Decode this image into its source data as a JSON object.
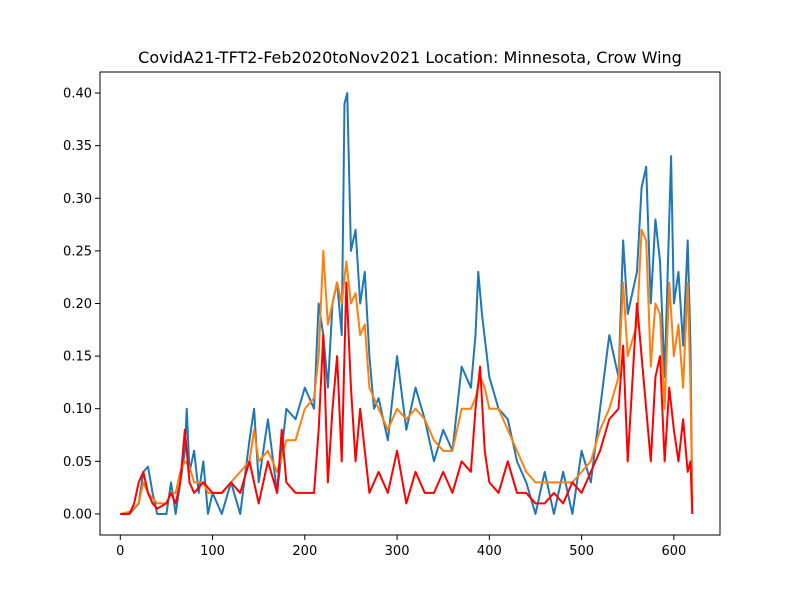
{
  "chart_data": {
    "type": "line",
    "title": "CovidA21-TFT2-Feb2020toNov2021 Location: Minnesota, Crow Wing",
    "xlabel": "",
    "ylabel": "",
    "xlim": [
      -22,
      650
    ],
    "ylim": [
      -0.02,
      0.42
    ],
    "x_ticks": [
      0,
      100,
      200,
      300,
      400,
      500,
      600
    ],
    "y_ticks": [
      0.0,
      0.05,
      0.1,
      0.15,
      0.2,
      0.25,
      0.3,
      0.35,
      0.4
    ],
    "y_tick_labels": [
      "0.00",
      "0.05",
      "0.10",
      "0.15",
      "0.20",
      "0.25",
      "0.30",
      "0.35",
      "0.40"
    ],
    "grid": false,
    "legend": "none",
    "series": [
      {
        "color": "#1f77b4",
        "points": [
          [
            0,
            0.0
          ],
          [
            10,
            0.0
          ],
          [
            20,
            0.01
          ],
          [
            25,
            0.04
          ],
          [
            30,
            0.045
          ],
          [
            35,
            0.02
          ],
          [
            40,
            0.0
          ],
          [
            50,
            0.0
          ],
          [
            55,
            0.03
          ],
          [
            60,
            0.0
          ],
          [
            65,
            0.03
          ],
          [
            70,
            0.06
          ],
          [
            72,
            0.1
          ],
          [
            75,
            0.04
          ],
          [
            80,
            0.06
          ],
          [
            85,
            0.02
          ],
          [
            90,
            0.05
          ],
          [
            95,
            0.0
          ],
          [
            100,
            0.02
          ],
          [
            110,
            0.0
          ],
          [
            120,
            0.03
          ],
          [
            130,
            0.0
          ],
          [
            140,
            0.07
          ],
          [
            145,
            0.1
          ],
          [
            150,
            0.03
          ],
          [
            160,
            0.09
          ],
          [
            170,
            0.02
          ],
          [
            180,
            0.1
          ],
          [
            190,
            0.09
          ],
          [
            200,
            0.12
          ],
          [
            210,
            0.1
          ],
          [
            215,
            0.2
          ],
          [
            220,
            0.17
          ],
          [
            225,
            0.12
          ],
          [
            230,
            0.2
          ],
          [
            235,
            0.22
          ],
          [
            240,
            0.17
          ],
          [
            243,
            0.39
          ],
          [
            246,
            0.4
          ],
          [
            250,
            0.25
          ],
          [
            255,
            0.27
          ],
          [
            260,
            0.2
          ],
          [
            265,
            0.23
          ],
          [
            270,
            0.15
          ],
          [
            275,
            0.1
          ],
          [
            280,
            0.11
          ],
          [
            290,
            0.07
          ],
          [
            300,
            0.15
          ],
          [
            310,
            0.08
          ],
          [
            320,
            0.12
          ],
          [
            330,
            0.09
          ],
          [
            340,
            0.05
          ],
          [
            350,
            0.08
          ],
          [
            360,
            0.06
          ],
          [
            370,
            0.14
          ],
          [
            380,
            0.12
          ],
          [
            385,
            0.17
          ],
          [
            388,
            0.23
          ],
          [
            392,
            0.19
          ],
          [
            400,
            0.13
          ],
          [
            410,
            0.1
          ],
          [
            420,
            0.09
          ],
          [
            430,
            0.05
          ],
          [
            440,
            0.03
          ],
          [
            450,
            0.0
          ],
          [
            460,
            0.04
          ],
          [
            470,
            0.0
          ],
          [
            480,
            0.04
          ],
          [
            490,
            0.0
          ],
          [
            500,
            0.06
          ],
          [
            510,
            0.03
          ],
          [
            520,
            0.1
          ],
          [
            530,
            0.17
          ],
          [
            540,
            0.13
          ],
          [
            545,
            0.26
          ],
          [
            550,
            0.19
          ],
          [
            560,
            0.23
          ],
          [
            565,
            0.31
          ],
          [
            570,
            0.33
          ],
          [
            575,
            0.2
          ],
          [
            580,
            0.28
          ],
          [
            585,
            0.24
          ],
          [
            590,
            0.13
          ],
          [
            597,
            0.34
          ],
          [
            600,
            0.2
          ],
          [
            605,
            0.23
          ],
          [
            610,
            0.16
          ],
          [
            615,
            0.26
          ],
          [
            618,
            0.16
          ],
          [
            620,
            0.0
          ]
        ]
      },
      {
        "color": "#ff7f0e",
        "points": [
          [
            0,
            0.0
          ],
          [
            10,
            0.002
          ],
          [
            20,
            0.01
          ],
          [
            25,
            0.03
          ],
          [
            30,
            0.02
          ],
          [
            40,
            0.01
          ],
          [
            50,
            0.01
          ],
          [
            55,
            0.02
          ],
          [
            60,
            0.02
          ],
          [
            65,
            0.04
          ],
          [
            70,
            0.05
          ],
          [
            75,
            0.045
          ],
          [
            80,
            0.03
          ],
          [
            90,
            0.03
          ],
          [
            95,
            0.02
          ],
          [
            100,
            0.02
          ],
          [
            110,
            0.02
          ],
          [
            120,
            0.03
          ],
          [
            130,
            0.04
          ],
          [
            140,
            0.05
          ],
          [
            145,
            0.08
          ],
          [
            150,
            0.05
          ],
          [
            160,
            0.06
          ],
          [
            170,
            0.04
          ],
          [
            180,
            0.07
          ],
          [
            190,
            0.07
          ],
          [
            200,
            0.1
          ],
          [
            210,
            0.11
          ],
          [
            215,
            0.15
          ],
          [
            220,
            0.25
          ],
          [
            225,
            0.18
          ],
          [
            230,
            0.2
          ],
          [
            235,
            0.22
          ],
          [
            240,
            0.2
          ],
          [
            245,
            0.24
          ],
          [
            250,
            0.2
          ],
          [
            255,
            0.21
          ],
          [
            260,
            0.17
          ],
          [
            265,
            0.18
          ],
          [
            270,
            0.12
          ],
          [
            280,
            0.1
          ],
          [
            290,
            0.08
          ],
          [
            300,
            0.1
          ],
          [
            310,
            0.09
          ],
          [
            320,
            0.1
          ],
          [
            330,
            0.09
          ],
          [
            340,
            0.07
          ],
          [
            350,
            0.06
          ],
          [
            360,
            0.06
          ],
          [
            370,
            0.1
          ],
          [
            380,
            0.1
          ],
          [
            385,
            0.11
          ],
          [
            390,
            0.13
          ],
          [
            395,
            0.12
          ],
          [
            400,
            0.1
          ],
          [
            410,
            0.1
          ],
          [
            420,
            0.08
          ],
          [
            430,
            0.06
          ],
          [
            440,
            0.04
          ],
          [
            450,
            0.03
          ],
          [
            460,
            0.03
          ],
          [
            470,
            0.03
          ],
          [
            480,
            0.03
          ],
          [
            490,
            0.03
          ],
          [
            500,
            0.04
          ],
          [
            510,
            0.05
          ],
          [
            520,
            0.08
          ],
          [
            530,
            0.1
          ],
          [
            540,
            0.13
          ],
          [
            545,
            0.22
          ],
          [
            550,
            0.15
          ],
          [
            560,
            0.18
          ],
          [
            565,
            0.27
          ],
          [
            570,
            0.26
          ],
          [
            575,
            0.14
          ],
          [
            580,
            0.2
          ],
          [
            585,
            0.19
          ],
          [
            590,
            0.1
          ],
          [
            595,
            0.22
          ],
          [
            600,
            0.15
          ],
          [
            605,
            0.18
          ],
          [
            610,
            0.12
          ],
          [
            615,
            0.22
          ],
          [
            618,
            0.12
          ],
          [
            620,
            0.01
          ]
        ]
      },
      {
        "color": "#ff0000",
        "points": [
          [
            0,
            0.0
          ],
          [
            10,
            0.0
          ],
          [
            15,
            0.01
          ],
          [
            20,
            0.03
          ],
          [
            25,
            0.04
          ],
          [
            30,
            0.02
          ],
          [
            35,
            0.01
          ],
          [
            40,
            0.005
          ],
          [
            50,
            0.01
          ],
          [
            55,
            0.02
          ],
          [
            60,
            0.01
          ],
          [
            65,
            0.03
          ],
          [
            70,
            0.08
          ],
          [
            75,
            0.03
          ],
          [
            80,
            0.02
          ],
          [
            90,
            0.03
          ],
          [
            100,
            0.02
          ],
          [
            110,
            0.02
          ],
          [
            120,
            0.03
          ],
          [
            130,
            0.02
          ],
          [
            140,
            0.05
          ],
          [
            150,
            0.01
          ],
          [
            160,
            0.05
          ],
          [
            170,
            0.02
          ],
          [
            175,
            0.08
          ],
          [
            180,
            0.03
          ],
          [
            190,
            0.02
          ],
          [
            200,
            0.02
          ],
          [
            210,
            0.02
          ],
          [
            215,
            0.08
          ],
          [
            220,
            0.17
          ],
          [
            225,
            0.03
          ],
          [
            230,
            0.1
          ],
          [
            235,
            0.15
          ],
          [
            240,
            0.05
          ],
          [
            245,
            0.22
          ],
          [
            250,
            0.12
          ],
          [
            255,
            0.05
          ],
          [
            260,
            0.1
          ],
          [
            270,
            0.02
          ],
          [
            280,
            0.04
          ],
          [
            290,
            0.02
          ],
          [
            300,
            0.06
          ],
          [
            310,
            0.01
          ],
          [
            320,
            0.04
          ],
          [
            330,
            0.02
          ],
          [
            340,
            0.02
          ],
          [
            350,
            0.04
          ],
          [
            360,
            0.02
          ],
          [
            370,
            0.05
          ],
          [
            380,
            0.04
          ],
          [
            385,
            0.1
          ],
          [
            390,
            0.14
          ],
          [
            395,
            0.06
          ],
          [
            400,
            0.03
          ],
          [
            410,
            0.02
          ],
          [
            420,
            0.05
          ],
          [
            430,
            0.02
          ],
          [
            440,
            0.02
          ],
          [
            450,
            0.01
          ],
          [
            460,
            0.01
          ],
          [
            470,
            0.02
          ],
          [
            480,
            0.01
          ],
          [
            490,
            0.03
          ],
          [
            500,
            0.02
          ],
          [
            510,
            0.04
          ],
          [
            520,
            0.06
          ],
          [
            530,
            0.09
          ],
          [
            540,
            0.1
          ],
          [
            545,
            0.16
          ],
          [
            550,
            0.05
          ],
          [
            560,
            0.2
          ],
          [
            565,
            0.15
          ],
          [
            570,
            0.1
          ],
          [
            575,
            0.05
          ],
          [
            580,
            0.13
          ],
          [
            585,
            0.15
          ],
          [
            590,
            0.05
          ],
          [
            595,
            0.12
          ],
          [
            600,
            0.08
          ],
          [
            605,
            0.05
          ],
          [
            610,
            0.09
          ],
          [
            615,
            0.04
          ],
          [
            618,
            0.05
          ],
          [
            620,
            0.0
          ]
        ]
      }
    ]
  }
}
